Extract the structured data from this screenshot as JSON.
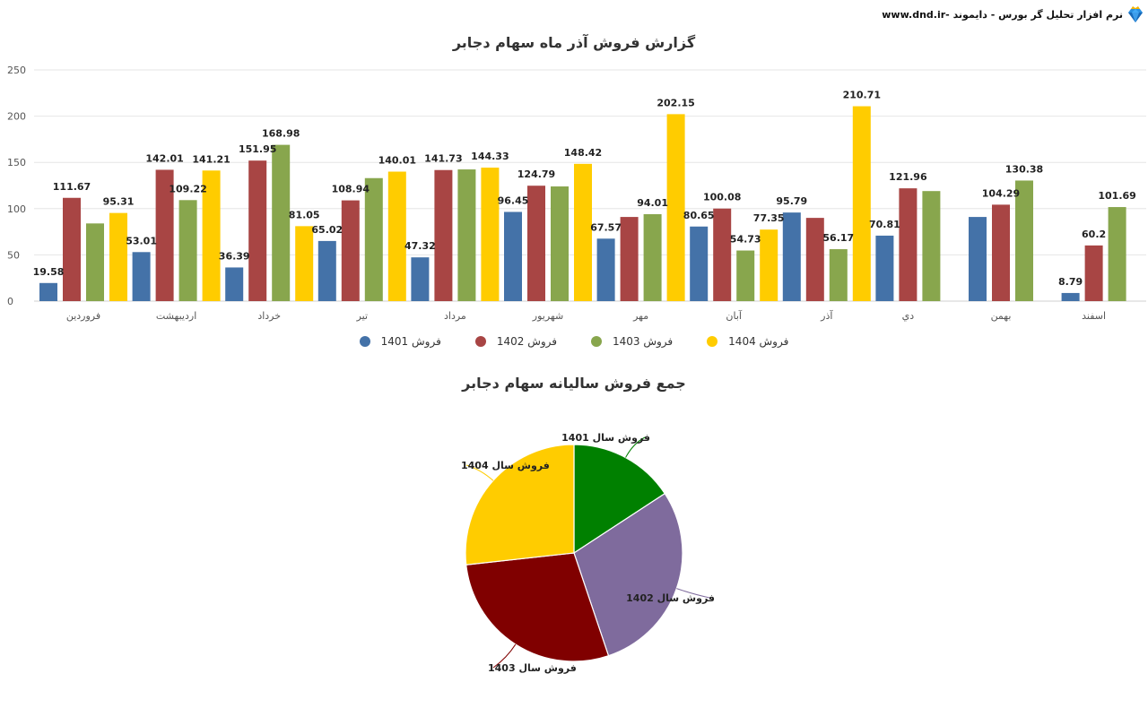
{
  "header": {
    "brand_text": "نرم افزار تحلیل گر بورس - دایموند -www.dnd.ir",
    "logo_icon": "diamond-crown-icon"
  },
  "bar_chart": {
    "title": "گزارش فروش آذر ماه سهام دجابر"
  },
  "pie_chart": {
    "title": "جمع فروش سالیانه سهام دجابر"
  },
  "legend": [
    {
      "label": "فروش 1401",
      "color": "#4472a8"
    },
    {
      "label": "فروش 1402",
      "color": "#a84544"
    },
    {
      "label": "فروش 1403",
      "color": "#88a64d"
    },
    {
      "label": "فروش 1404",
      "color": "#ffcc00"
    }
  ],
  "chart_data": [
    {
      "type": "bar",
      "title": "گزارش فروش آذر ماه سهام دجابر",
      "xlabel": "",
      "ylabel": "",
      "ylim": [
        0,
        250
      ],
      "yticks": [
        0,
        50,
        100,
        150,
        200,
        250
      ],
      "grid": true,
      "legend_position": "bottom",
      "categories": [
        "فروردین",
        "اردیبهشت",
        "خرداد",
        "تیر",
        "مرداد",
        "شهریور",
        "مهر",
        "آبان",
        "آذر",
        "دي",
        "بهمن",
        "اسفند"
      ],
      "series": [
        {
          "name": "فروش 1401",
          "color": "#4472a8",
          "values": [
            19.58,
            53.01,
            36.39,
            65.02,
            47.32,
            96.45,
            67.57,
            80.65,
            95.79,
            70.81,
            91,
            8.79
          ],
          "labels": [
            "19.58",
            "53.01",
            "36.39",
            "65.02",
            "47.32",
            "96.45",
            "67.57",
            "80.65",
            "95.79",
            "70.81",
            "",
            "8.79"
          ]
        },
        {
          "name": "فروش 1402",
          "color": "#a84544",
          "values": [
            111.67,
            142.01,
            151.95,
            108.94,
            141.73,
            124.79,
            91,
            100.08,
            90,
            121.96,
            104.29,
            60.2
          ],
          "labels": [
            "111.67",
            "142.01",
            "151.95",
            "108.94",
            "141.73",
            "124.79",
            "",
            "100.08",
            "",
            "121.96",
            "104.29",
            "60.2"
          ]
        },
        {
          "name": "فروش 1403",
          "color": "#88a64d",
          "values": [
            84,
            109.22,
            168.98,
            133,
            142.4,
            124,
            94.01,
            54.73,
            56.17,
            119,
            130.38,
            101.69
          ],
          "labels": [
            "",
            "109.22",
            "168.98",
            "",
            "",
            "",
            "94.01",
            "54.73",
            "56.17",
            "",
            "130.38",
            "101.69"
          ]
        },
        {
          "name": "فروش 1404",
          "color": "#ffcc00",
          "values": [
            95.31,
            141.21,
            81.05,
            140.01,
            144.33,
            148.42,
            202.15,
            77.35,
            210.71,
            null,
            null,
            null
          ],
          "labels": [
            "95.31",
            "141.21",
            "81.05",
            "140.01",
            "144.33",
            "148.42",
            "202.15",
            "77.35",
            "210.71",
            "",
            "",
            ""
          ]
        }
      ]
    },
    {
      "type": "pie",
      "title": "جمع فروش سالیانه سهام دجابر",
      "legend_position": "labels",
      "categories": [
        "فروش سال 1401",
        "فروش سال 1402",
        "فروش سال 1403",
        "فروش سال 1404"
      ],
      "values": [
        732,
        1349,
        1318,
        1241
      ],
      "colors": [
        "#008000",
        "#7f6b9d",
        "#800000",
        "#ffcc00"
      ]
    }
  ]
}
